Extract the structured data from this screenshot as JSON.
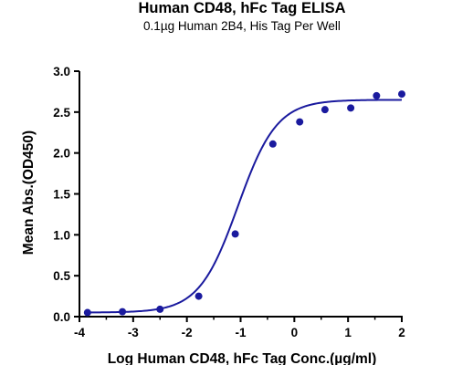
{
  "chart_data": {
    "type": "scatter",
    "title": "Human CD48, hFc Tag ELISA",
    "subtitle": "0.1µg Human 2B4, His Tag Per Well",
    "xlabel": "Log Human CD48, hFc Tag Conc.(µg/ml)",
    "ylabel": "Mean Abs.(OD450)",
    "xlim": [
      -4,
      2
    ],
    "ylim": [
      0,
      3.0
    ],
    "x_ticks": [
      -4,
      -3,
      -2,
      -1,
      0,
      1,
      2
    ],
    "x_tick_labels": [
      "-4",
      "-3",
      "-2",
      "-1",
      "0",
      "1",
      "2"
    ],
    "y_ticks": [
      0,
      0.5,
      1.0,
      1.5,
      2.0,
      2.5,
      3.0
    ],
    "y_tick_labels": [
      "0.0",
      "0.5",
      "1.0",
      "1.5",
      "2.0",
      "2.5",
      "3.0"
    ],
    "grid": false,
    "legend": "none",
    "point_color": "#1a1a9e",
    "curve_color": "#1a1a9e",
    "fit": {
      "model": "4PL",
      "bottom": 0.05,
      "top": 2.65,
      "log_ec50": -1.05,
      "hill_slope": 1.2
    },
    "series": [
      {
        "x": [
          -3.85,
          -3.2,
          -2.5,
          -1.78,
          -1.1,
          -0.4,
          0.1,
          0.57,
          1.05,
          1.53,
          2.0
        ],
        "y": [
          0.05,
          0.06,
          0.09,
          0.25,
          1.01,
          2.11,
          2.38,
          2.53,
          2.55,
          2.7,
          2.72
        ]
      }
    ]
  }
}
